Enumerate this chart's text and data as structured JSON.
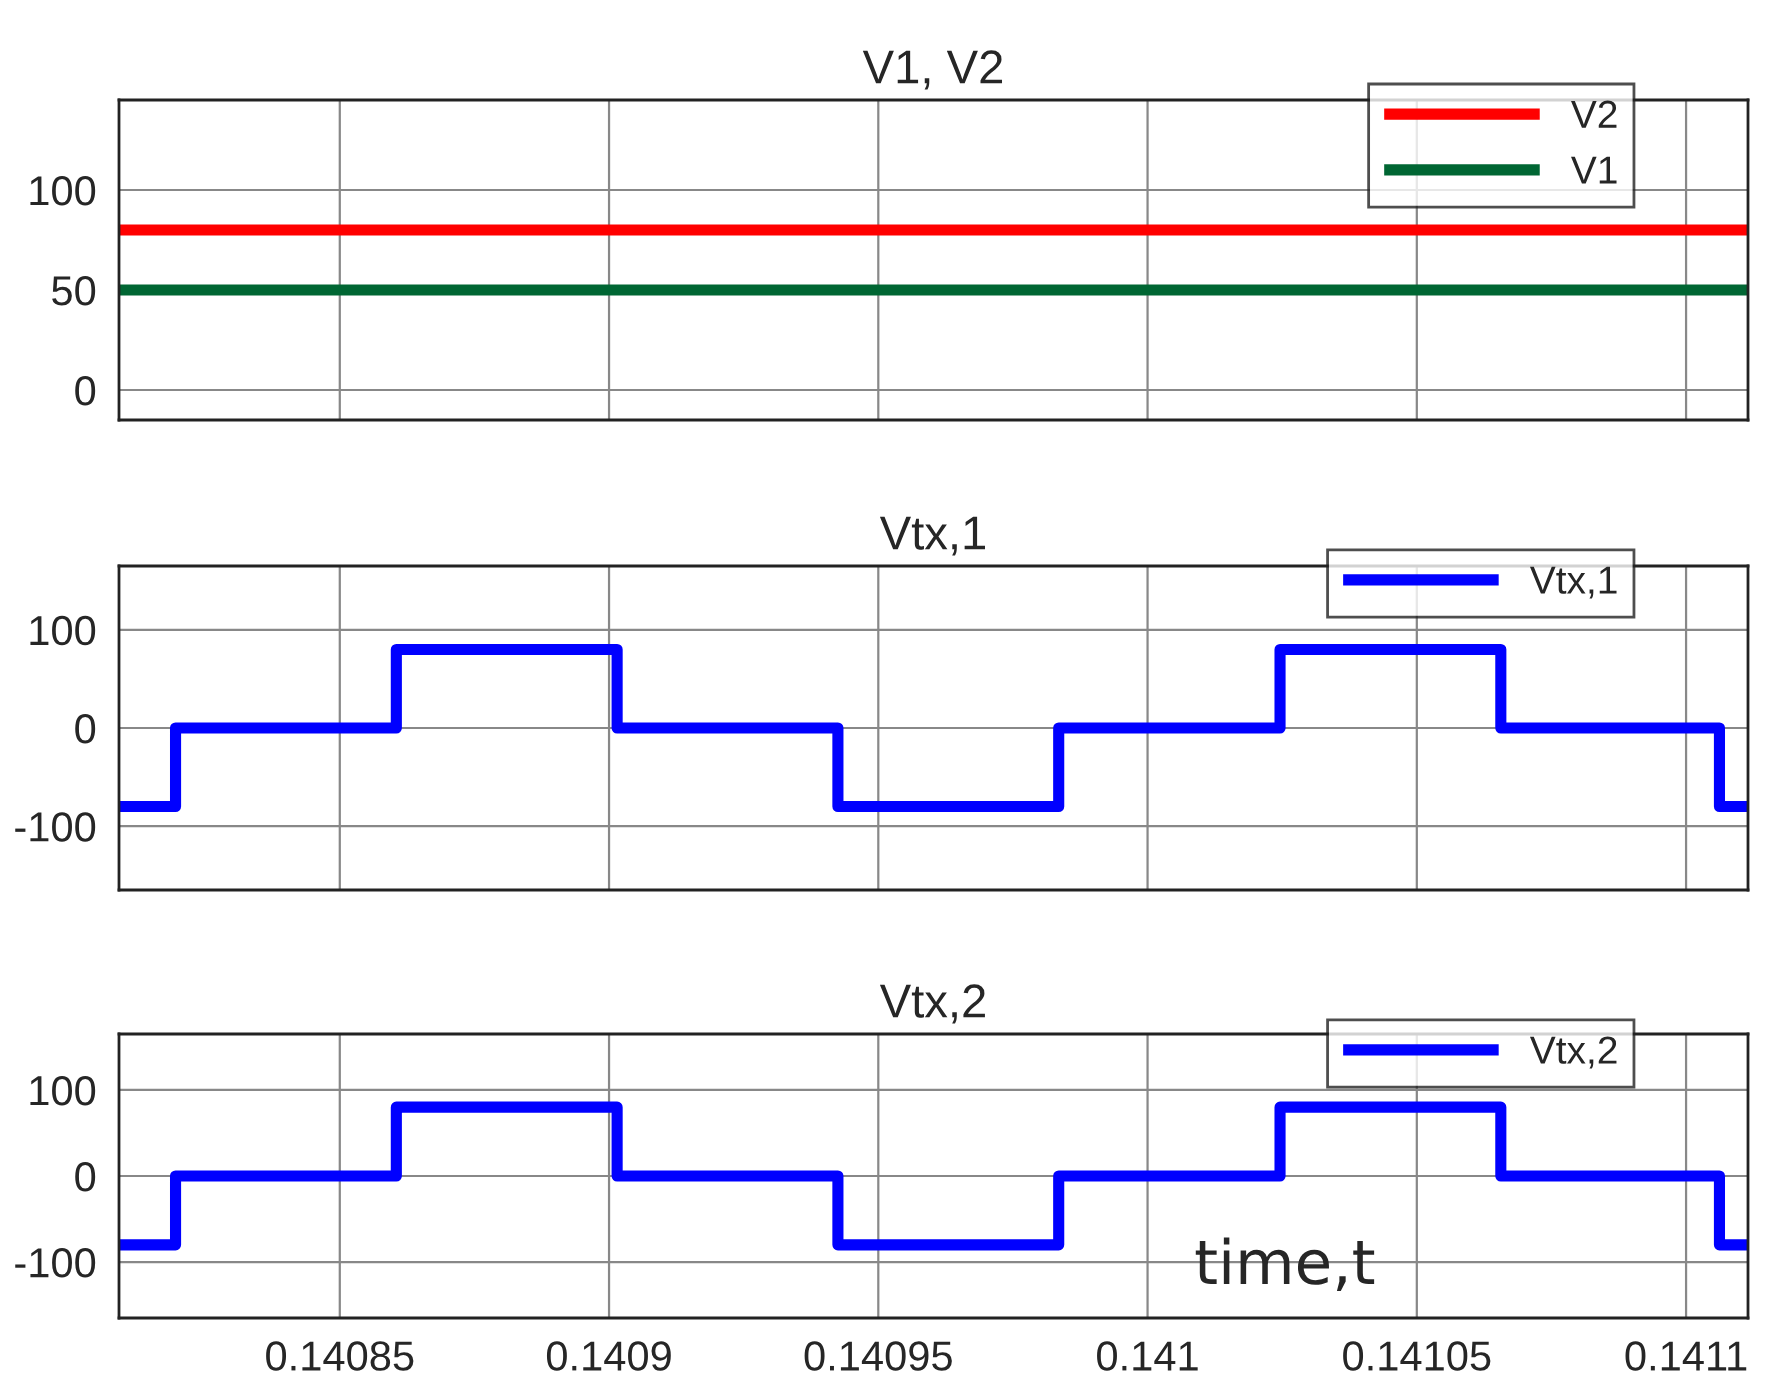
{
  "chart_data": [
    {
      "type": "line",
      "title": "V1, V2",
      "x": [
        0.140809,
        0.1411115
      ],
      "xlim": [
        0.140809,
        0.1411115
      ],
      "xticks": [
        0.14085,
        0.1409,
        0.14095,
        0.141,
        0.14105,
        0.1411
      ],
      "ylim": [
        -15,
        145
      ],
      "yticks": [
        0,
        50,
        100
      ],
      "grid": true,
      "legend": "top right",
      "tick_labels": "y",
      "series": [
        {
          "name": "V2",
          "color": "#ff0000",
          "values": [
            80,
            80
          ]
        },
        {
          "name": "V1",
          "color": "#006633",
          "values": [
            50,
            50
          ]
        }
      ]
    },
    {
      "type": "step",
      "title": "Vtx,1",
      "x": [
        0.140809,
        0.1408195,
        0.1408605,
        0.1409015,
        0.1409425,
        0.1409835,
        0.1410246,
        0.1410656,
        0.1411062,
        0.1411115
      ],
      "xlim": [
        0.140809,
        0.1411115
      ],
      "xticks": [
        0.14085,
        0.1409,
        0.14095,
        0.141,
        0.14105,
        0.1411
      ],
      "ylim": [
        -165,
        165
      ],
      "yticks": [
        -100,
        0,
        100
      ],
      "grid": true,
      "legend": "top right",
      "tick_labels": "y",
      "series": [
        {
          "name": "Vtx,1",
          "color": "#0000ff",
          "values": [
            -80,
            0,
            80,
            0,
            -80,
            0,
            80,
            0,
            -80,
            -80
          ]
        }
      ]
    },
    {
      "type": "step",
      "title": "Vtx,2",
      "x": [
        0.140809,
        0.1408195,
        0.1408605,
        0.1409015,
        0.1409425,
        0.1409835,
        0.1410246,
        0.1410656,
        0.1411062,
        0.1411115
      ],
      "xlim": [
        0.140809,
        0.1411115
      ],
      "xticks": [
        0.14085,
        0.1409,
        0.14095,
        0.141,
        0.14105,
        0.1411
      ],
      "ylim": [
        -165,
        165
      ],
      "yticks": [
        -100,
        0,
        100
      ],
      "grid": true,
      "legend": "top right",
      "annotations": [
        "time,t"
      ],
      "series": [
        {
          "name": "Vtx,2",
          "color": "#0000ff",
          "values": [
            -80,
            0,
            80,
            0,
            -80,
            0,
            80,
            0,
            -80,
            -80
          ]
        }
      ]
    }
  ]
}
